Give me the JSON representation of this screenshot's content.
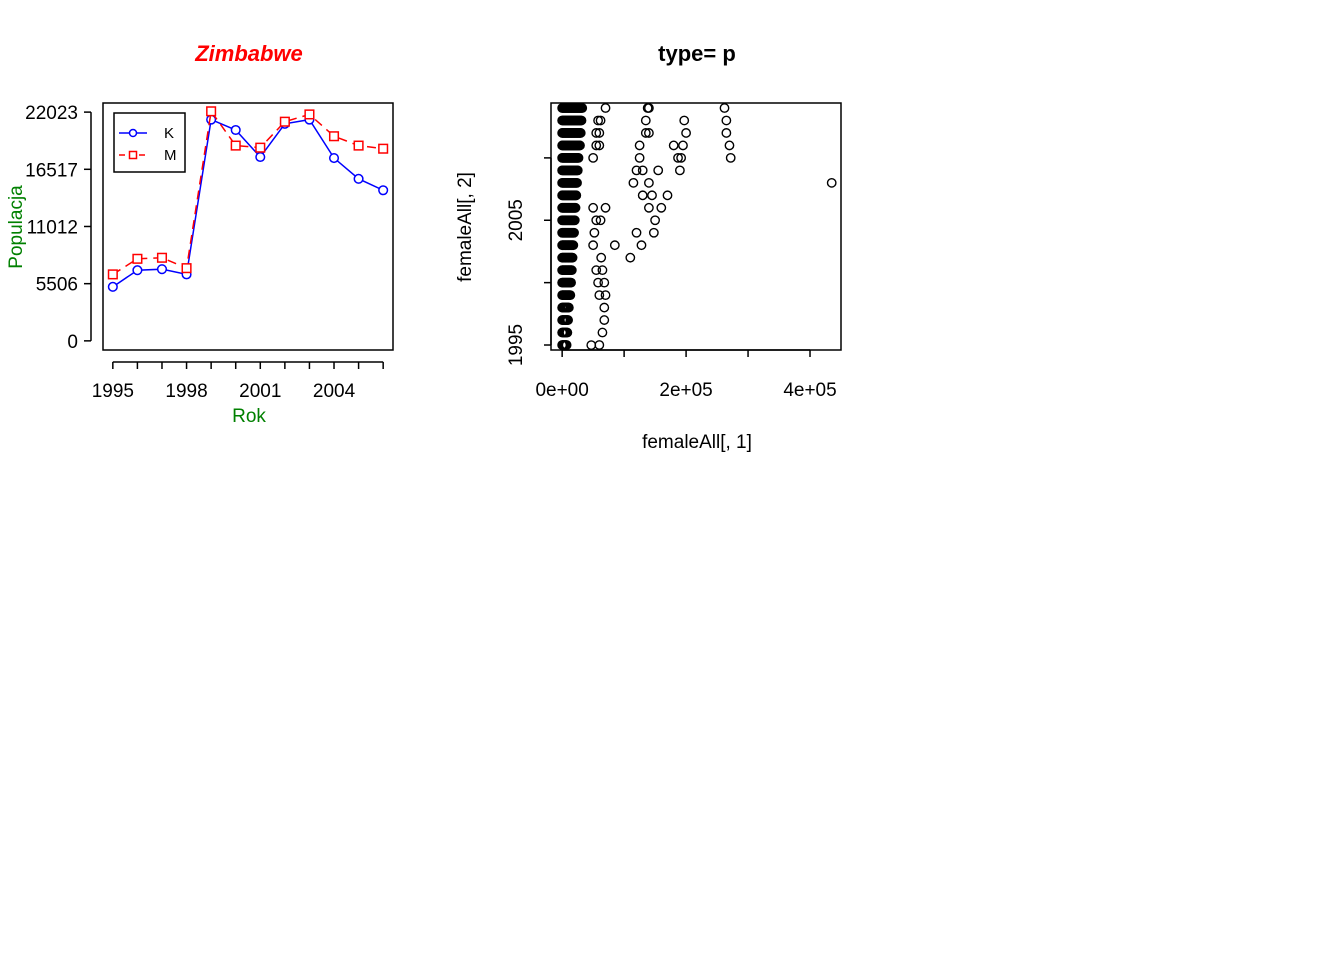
{
  "chart_data": [
    {
      "type": "line",
      "title": "Zimbabwe",
      "title_color": "#ff0000",
      "xlabel": "Rok",
      "ylabel": "Populacja",
      "label_color": "#008000",
      "x_ticks": [
        1995,
        1998,
        2001,
        2004
      ],
      "x_ticks_unlabeled": [
        1996,
        1997,
        1999,
        2000,
        2002,
        2003,
        2005,
        2006
      ],
      "y_ticks": [
        0,
        5506,
        11012,
        16517,
        22023
      ],
      "xlim": [
        1994.6,
        2006.4
      ],
      "ylim": [
        -880,
        22900
      ],
      "x": [
        1995,
        1996,
        1997,
        1998,
        1999,
        2000,
        2001,
        2002,
        2003,
        2004,
        2005,
        2006
      ],
      "legend": "top-left",
      "series": [
        {
          "name": "K",
          "color": "#0000ff",
          "line": "solid",
          "marker": "circle",
          "values": [
            5200,
            6800,
            6900,
            6400,
            21300,
            20300,
            17700,
            20900,
            21300,
            17600,
            15600,
            14500
          ]
        },
        {
          "name": "M",
          "color": "#ff0000",
          "line": "dashed",
          "marker": "square",
          "values": [
            6400,
            7900,
            8000,
            7000,
            22100,
            18800,
            18600,
            21100,
            21800,
            19700,
            18800,
            18500
          ]
        }
      ]
    },
    {
      "type": "scatter",
      "title": "type= p",
      "xlabel": "femaleAll[, 1]",
      "ylabel": "femaleAll[, 2]",
      "x_ticks": [
        0,
        200000,
        400000
      ],
      "x_tick_labels": [
        "0e+00",
        "2e+05",
        "4e+05"
      ],
      "x_ticks_unlabeled": [
        100000,
        300000
      ],
      "y_ticks": [
        1995,
        2005
      ],
      "y_ticks_unlabeled": [
        2000,
        2010
      ],
      "xlim": [
        -18000,
        450000
      ],
      "ylim": [
        1994.6,
        2014.4
      ],
      "years": [
        1995,
        1996,
        1997,
        1998,
        1999,
        2000,
        2001,
        2002,
        2003,
        2004,
        2005,
        2006,
        2007,
        2008,
        2009,
        2010,
        2011,
        2012,
        2013,
        2014
      ],
      "extra_points": [
        {
          "year": 2014,
          "values": [
            70000,
            138000,
            140000,
            262000
          ]
        },
        {
          "year": 2013,
          "values": [
            58000,
            62000,
            135000,
            197000,
            265000
          ]
        },
        {
          "year": 2012,
          "values": [
            55000,
            60000,
            135000,
            140000,
            200000,
            265000
          ]
        },
        {
          "year": 2011,
          "values": [
            55000,
            60000,
            125000,
            180000,
            195000,
            270000
          ]
        },
        {
          "year": 2010,
          "values": [
            50000,
            125000,
            187000,
            192000,
            272000
          ]
        },
        {
          "year": 2009,
          "values": [
            120000,
            130000,
            155000,
            190000
          ]
        },
        {
          "year": 2008,
          "values": [
            115000,
            140000,
            435000
          ]
        },
        {
          "year": 2007,
          "values": [
            130000,
            145000,
            170000
          ]
        },
        {
          "year": 2006,
          "values": [
            50000,
            70000,
            140000,
            160000
          ]
        },
        {
          "year": 2005,
          "values": [
            55000,
            62000,
            150000
          ]
        },
        {
          "year": 2004,
          "values": [
            52000,
            120000,
            148000
          ]
        },
        {
          "year": 2003,
          "values": [
            50000,
            85000,
            128000
          ]
        },
        {
          "year": 2002,
          "values": [
            63000,
            110000
          ]
        },
        {
          "year": 2001,
          "values": [
            55000,
            65000
          ]
        },
        {
          "year": 2000,
          "values": [
            58000,
            68000
          ]
        },
        {
          "year": 1999,
          "values": [
            60000,
            70000
          ]
        },
        {
          "year": 1998,
          "values": [
            68000
          ]
        },
        {
          "year": 1997,
          "values": [
            68000
          ]
        },
        {
          "year": 1996,
          "values": [
            65000
          ]
        },
        {
          "year": 1995,
          "values": [
            60000
          ]
        },
        {
          "year": 1994.99,
          "values": [
            47000
          ]
        }
      ]
    }
  ]
}
